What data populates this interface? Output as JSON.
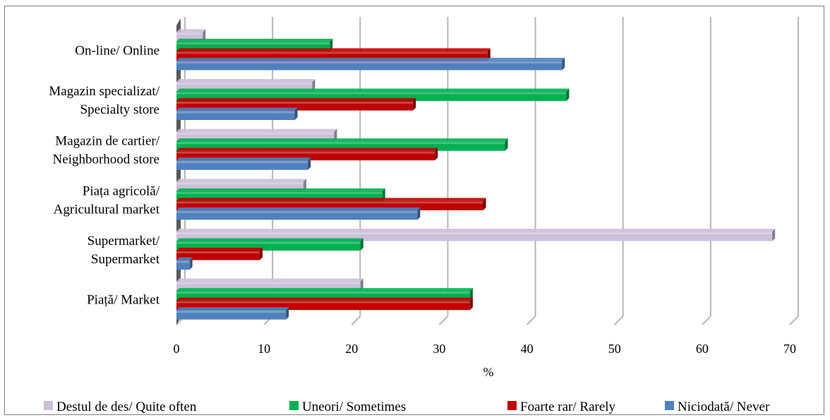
{
  "chart_data": {
    "type": "bar",
    "orientation": "horizontal",
    "title": "",
    "xlabel": "%",
    "ylabel": "",
    "xlim": [
      0,
      70
    ],
    "xticks": [
      "0",
      "10",
      "20",
      "30",
      "40",
      "50",
      "60",
      "70"
    ],
    "grid": true,
    "legend_position": "bottom",
    "categories": [
      [
        "On-line/ Online"
      ],
      [
        "Magazin specializat/",
        "Specialty store"
      ],
      [
        "Magazin de cartier/",
        "Neighborhood store"
      ],
      [
        "Piața agricolă/",
        "Agricultural market"
      ],
      [
        "Supermarket/",
        "Supermarket"
      ],
      [
        "Piață/ Market"
      ]
    ],
    "series": [
      {
        "name": "Destul de des/ Quite often",
        "color": "#ccc0da",
        "values": [
          3,
          15.5,
          18,
          14.5,
          68,
          21
        ]
      },
      {
        "name": "Uneori/ Sometimes",
        "color": "#00b050",
        "values": [
          17.5,
          44.5,
          37.5,
          23.5,
          21,
          33.5
        ]
      },
      {
        "name": "Foarte rar/ Rarely",
        "color": "#c00000",
        "values": [
          35.5,
          27,
          29.5,
          35,
          9.5,
          33.5
        ]
      },
      {
        "name": "Niciodată/ Never",
        "color": "#4f81bd",
        "values": [
          44,
          13.5,
          15,
          27.5,
          1.5,
          12.5
        ]
      }
    ]
  }
}
